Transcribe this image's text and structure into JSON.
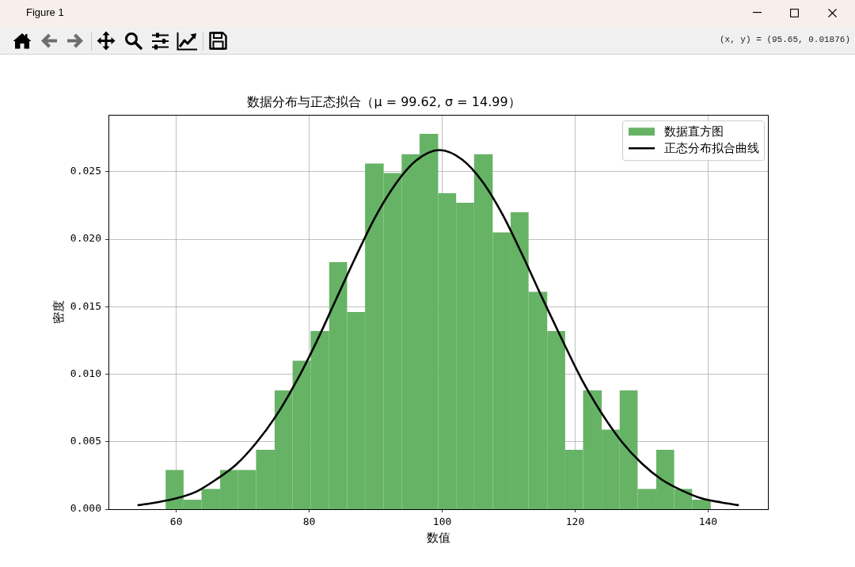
{
  "chart_data": {
    "type": "histogram",
    "title": "数据分布与正态拟合（μ = 99.62, σ = 14.99）",
    "xlabel": "数值",
    "ylabel": "密度",
    "bins": [
      58.4,
      61.1,
      63.8,
      66.6,
      69.3,
      72.0,
      74.8,
      77.5,
      80.2,
      83.0,
      85.7,
      88.4,
      91.2,
      93.9,
      96.6,
      99.4,
      102.1,
      104.8,
      107.6,
      110.3,
      113.0,
      115.8,
      118.5,
      121.2,
      124.0,
      126.7,
      129.4,
      132.2,
      134.9,
      137.6,
      140.4
    ],
    "series": [
      {
        "name": "数据直方图",
        "type": "histogram",
        "color": "#66b366",
        "values": [
          0.0029,
          0.0007,
          0.0015,
          0.0029,
          0.0029,
          0.0044,
          0.0088,
          0.011,
          0.0132,
          0.0183,
          0.0146,
          0.0256,
          0.0249,
          0.0263,
          0.0278,
          0.0234,
          0.0227,
          0.0263,
          0.0205,
          0.022,
          0.0161,
          0.0132,
          0.0044,
          0.0088,
          0.0059,
          0.0088,
          0.0015,
          0.0044,
          0.0015,
          0.0007
        ]
      },
      {
        "name": "正态分布拟合曲线",
        "type": "line",
        "color": "#000000",
        "x": [
          54.3,
          57,
          60,
          63,
          66,
          69,
          72,
          75,
          78,
          81,
          84,
          87,
          90,
          93,
          96,
          99.6,
          103,
          106,
          109,
          112,
          115,
          118,
          121,
          124,
          127,
          130,
          133,
          136,
          139,
          142,
          144.5
        ],
        "values": [
          0.0003,
          0.0005,
          0.0008,
          0.0013,
          0.0022,
          0.0033,
          0.0049,
          0.0069,
          0.0094,
          0.0123,
          0.0155,
          0.0187,
          0.0217,
          0.0241,
          0.0258,
          0.0266,
          0.0259,
          0.0243,
          0.0219,
          0.0189,
          0.0157,
          0.0126,
          0.0096,
          0.0071,
          0.005,
          0.0034,
          0.0022,
          0.0014,
          0.0008,
          0.0005,
          0.0003
        ]
      }
    ],
    "xlim": [
      49.8,
      149.0
    ],
    "ylim": [
      0,
      0.0292
    ],
    "xticks": [
      60,
      80,
      100,
      120,
      140
    ],
    "yticks": [
      {
        "value": 0,
        "label": "0.000"
      },
      {
        "value": 0.005,
        "label": "0.005"
      },
      {
        "value": 0.01,
        "label": "0.010"
      },
      {
        "value": 0.015,
        "label": "0.015"
      },
      {
        "value": 0.02,
        "label": "0.020"
      },
      {
        "value": 0.025,
        "label": "0.025"
      }
    ],
    "grid": true,
    "legend": "top right",
    "annotations": [
      "Figure 1",
      "(x, y) = (95.65, 0.01876)"
    ]
  }
}
